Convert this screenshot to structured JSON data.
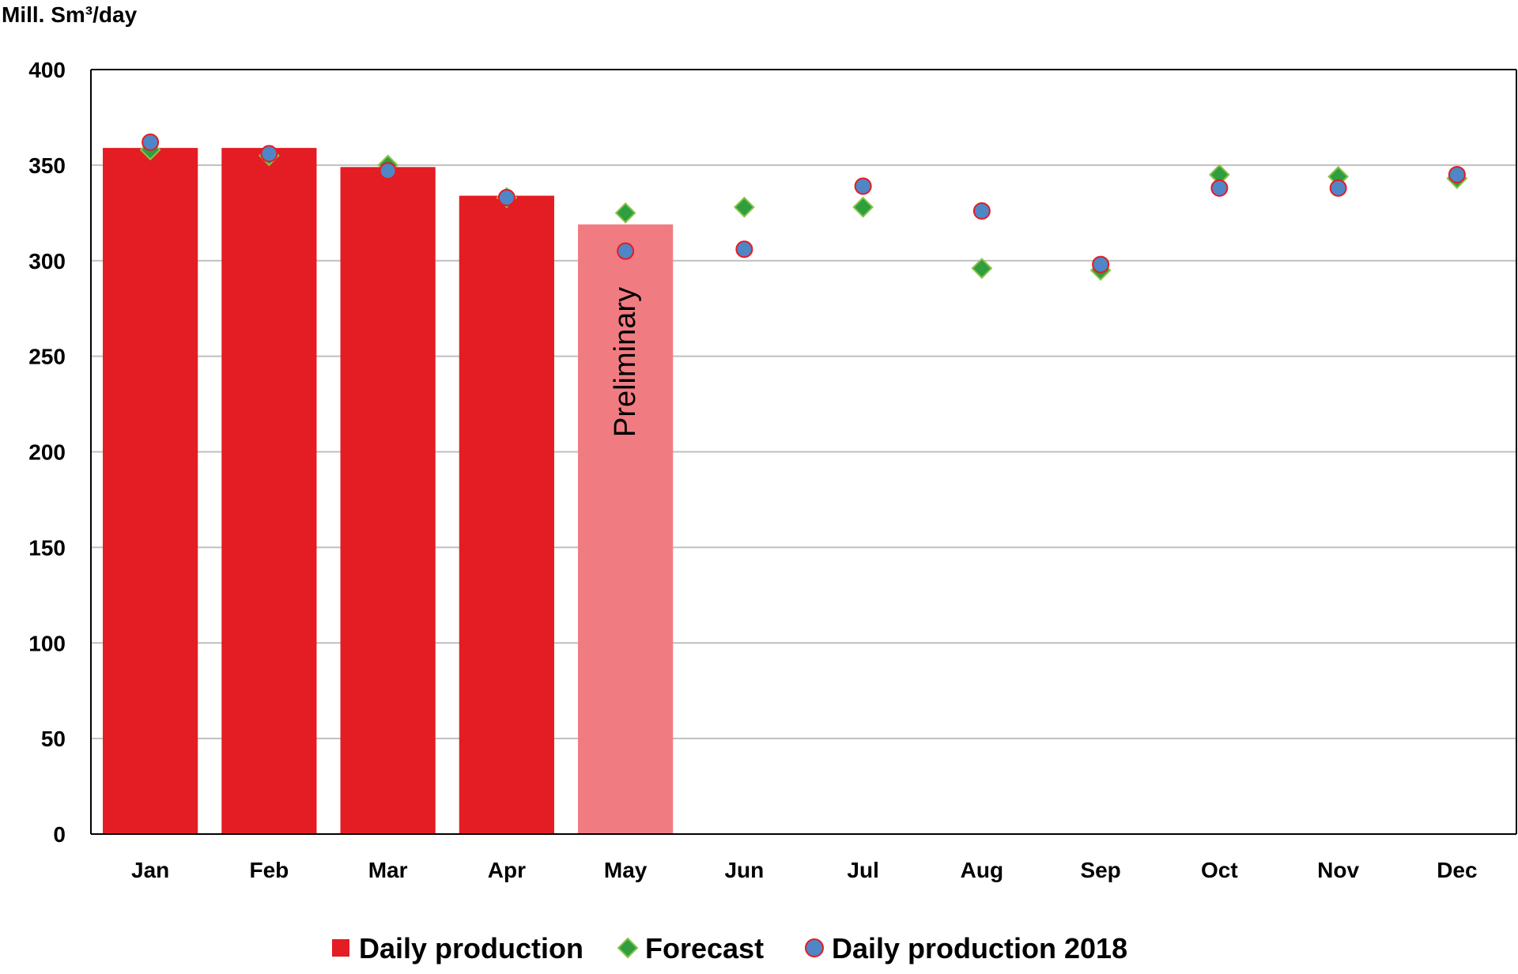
{
  "chart_data": {
    "type": "bar",
    "title": "",
    "xlabel": "",
    "ylabel": "Mill. Sm³/day",
    "ylim": [
      0,
      400
    ],
    "yticks": [
      0,
      50,
      100,
      150,
      200,
      250,
      300,
      350,
      400
    ],
    "grid": true,
    "legend_position": "bottom",
    "categories": [
      "Jan",
      "Feb",
      "Mar",
      "Apr",
      "May",
      "Jun",
      "Jul",
      "Aug",
      "Sep",
      "Oct",
      "Nov",
      "Dec"
    ],
    "series": [
      {
        "name": "Daily production",
        "kind": "bar",
        "color": "#e41c23",
        "values": [
          359,
          359,
          349,
          334,
          319,
          null,
          null,
          null,
          null,
          null,
          null,
          null
        ],
        "preliminary_index": 4,
        "preliminary_color": "#f07c82",
        "preliminary_label": "Preliminary"
      },
      {
        "name": "Forecast",
        "kind": "marker",
        "marker": "diamond",
        "color": "#2e9e3e",
        "edge_color": "#8bc34a",
        "values": [
          358,
          355,
          350,
          333,
          325,
          328,
          328,
          296,
          295,
          345,
          344,
          343
        ]
      },
      {
        "name": "Daily production 2018",
        "kind": "marker",
        "marker": "circle",
        "color": "#4f86c6",
        "edge_color": "#e41c23",
        "values": [
          362,
          356,
          347,
          333,
          305,
          306,
          339,
          326,
          298,
          338,
          338,
          345
        ]
      }
    ]
  }
}
